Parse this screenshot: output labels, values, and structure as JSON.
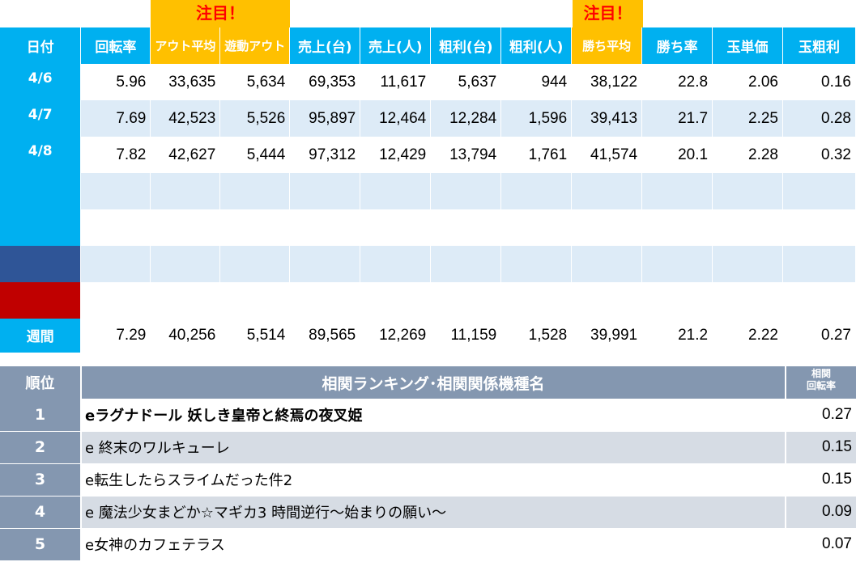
{
  "badges": [
    "注目！",
    "注目！"
  ],
  "stats": {
    "headers": [
      "日付",
      "回転率",
      "アウト平均",
      "遊動アウト",
      "売上(台)",
      "売上(人)",
      "粗利(台)",
      "粗利(人)",
      "勝ち平均",
      "勝ち率",
      "玉単価",
      "玉粗利"
    ],
    "rows": [
      {
        "date": "4/6",
        "values": [
          "5.96",
          "33,635",
          "5,634",
          "69,353",
          "11,617",
          "5,637",
          "944",
          "38,122",
          "22.8",
          "2.06",
          "0.16"
        ]
      },
      {
        "date": "4/7",
        "values": [
          "7.69",
          "42,523",
          "5,526",
          "95,897",
          "12,464",
          "12,284",
          "1,596",
          "39,413",
          "21.7",
          "2.25",
          "0.28"
        ]
      },
      {
        "date": "4/8",
        "values": [
          "7.82",
          "42,627",
          "5,444",
          "97,312",
          "12,429",
          "13,794",
          "1,761",
          "41,574",
          "20.1",
          "2.28",
          "0.32"
        ]
      },
      {
        "date": "",
        "values": [
          "",
          "",
          "",
          "",
          "",
          "",
          "",
          "",
          "",
          "",
          ""
        ]
      },
      {
        "date": "",
        "values": [
          "",
          "",
          "",
          "",
          "",
          "",
          "",
          "",
          "",
          "",
          ""
        ]
      },
      {
        "date": "",
        "values": [
          "",
          "",
          "",
          "",
          "",
          "",
          "",
          "",
          "",
          "",
          ""
        ]
      },
      {
        "date": "",
        "values": [
          "",
          "",
          "",
          "",
          "",
          "",
          "",
          "",
          "",
          "",
          ""
        ]
      }
    ],
    "week": {
      "label": "週間",
      "values": [
        "7.29",
        "40,256",
        "5,514",
        "89,565",
        "12,269",
        "11,159",
        "1,528",
        "39,991",
        "21.2",
        "2.22",
        "0.27"
      ]
    }
  },
  "colors": {
    "header_blue": "#00b0f0",
    "highlight": "#ffc000",
    "badge_text": "#ff0000",
    "saturday": "#2f5597",
    "sunday": "#c00000",
    "rank_gray": "#8497b0"
  },
  "ranking": {
    "header_rank": "順位",
    "header_name": "相関ランキング･相関関係機種名",
    "header_corr_1": "相関",
    "header_corr_2": "回転率",
    "rows": [
      {
        "rank": "1",
        "name": "eラグナドール 妖しき皇帝と終焉の夜叉姫",
        "value": "0.27"
      },
      {
        "rank": "2",
        "name": "e 終末のワルキューレ",
        "value": "0.15"
      },
      {
        "rank": "3",
        "name": "e転生したらスライムだった件2",
        "value": "0.15"
      },
      {
        "rank": "4",
        "name": "e 魔法少女まどか☆マギカ3 時間逆行～始まりの願い～",
        "value": "0.09"
      },
      {
        "rank": "5",
        "name": "e女神のカフェテラス",
        "value": "0.07"
      }
    ]
  }
}
